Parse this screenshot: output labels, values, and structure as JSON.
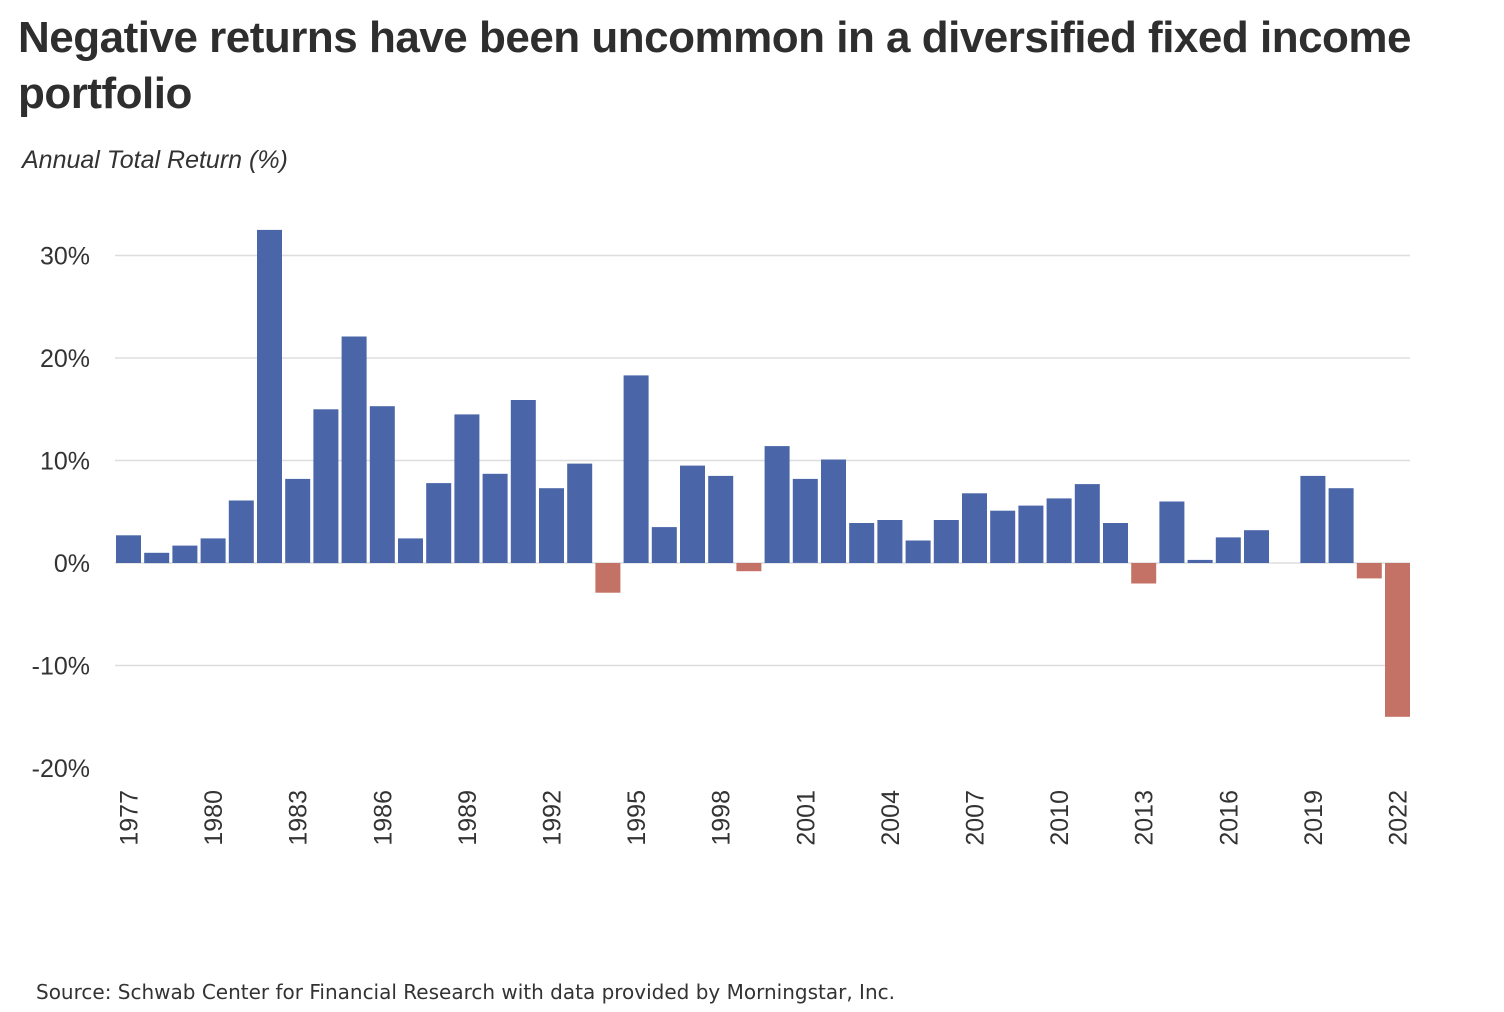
{
  "title": "Negative returns have been uncommon in a diversified fixed income portfolio",
  "source": "Source: Schwab Center for Financial Research with data provided by Morningstar, Inc.",
  "colors": {
    "positive": "#4a66a8",
    "negative": "#c47265",
    "grid": "#dddddd",
    "text": "#333333"
  },
  "chart_data": {
    "type": "bar",
    "title": "Negative returns have been uncommon in a diversified fixed income portfolio",
    "ylabel": "Annual Total Return (%)",
    "xlabel": "",
    "ylim": [
      -20,
      30
    ],
    "yticks": [
      30,
      20,
      10,
      0,
      -10,
      -20
    ],
    "ytick_labels": [
      "30%",
      "20%",
      "10%",
      "0%",
      "-10%",
      "-20%"
    ],
    "xtick_labels": [
      "1977",
      "1980",
      "1983",
      "1986",
      "1989",
      "1992",
      "1995",
      "1998",
      "2001",
      "2004",
      "2007",
      "2010",
      "2013",
      "2016",
      "2019",
      "2022"
    ],
    "grid": true,
    "legend": "none",
    "categories": [
      "1977",
      "1978",
      "1979",
      "1980",
      "1981",
      "1982",
      "1983",
      "1984",
      "1985",
      "1986",
      "1987",
      "1988",
      "1989",
      "1990",
      "1991",
      "1992",
      "1993",
      "1994",
      "1995",
      "1996",
      "1997",
      "1998",
      "1999",
      "2000",
      "2001",
      "2002",
      "2003",
      "2004",
      "2005",
      "2006",
      "2007",
      "2008",
      "2009",
      "2010",
      "2011",
      "2012",
      "2013",
      "2014",
      "2015",
      "2016",
      "2017",
      "2018",
      "2019",
      "2020",
      "2021",
      "2022"
    ],
    "values": [
      2.7,
      1.0,
      1.7,
      2.4,
      6.1,
      32.5,
      8.2,
      15.0,
      22.1,
      15.3,
      2.4,
      7.8,
      14.5,
      8.7,
      15.9,
      7.3,
      9.7,
      -2.9,
      18.3,
      3.5,
      9.5,
      8.5,
      -0.8,
      11.4,
      8.2,
      10.1,
      3.9,
      4.2,
      2.2,
      4.2,
      6.8,
      5.1,
      5.6,
      6.3,
      7.7,
      3.9,
      -2.0,
      6.0,
      0.3,
      2.5,
      3.2,
      0.0,
      8.5,
      7.3,
      -1.5,
      -15.0
    ]
  }
}
